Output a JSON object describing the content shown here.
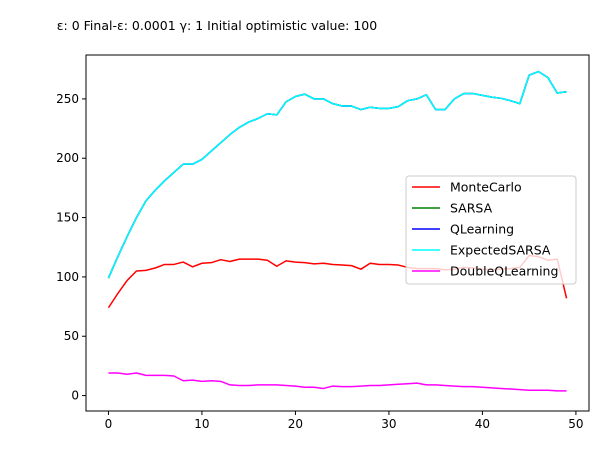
{
  "chart_data": {
    "type": "line",
    "title": "ε: 0    Final-ε: 0.0001    γ: 1    Initial optimistic value: 100",
    "xlabel": "",
    "ylabel": "",
    "xlim": [
      -2.4,
      51.4
    ],
    "ylim": [
      -13,
      287
    ],
    "xticks": [
      0,
      10,
      20,
      30,
      40,
      50
    ],
    "yticks": [
      0,
      50,
      100,
      150,
      200,
      250
    ],
    "grid": false,
    "legend_position": "center-right",
    "x": [
      0,
      1,
      2,
      3,
      4,
      5,
      6,
      7,
      8,
      9,
      10,
      11,
      12,
      13,
      14,
      15,
      16,
      17,
      18,
      19,
      20,
      21,
      22,
      23,
      24,
      25,
      26,
      27,
      28,
      29,
      30,
      31,
      32,
      33,
      34,
      35,
      36,
      37,
      38,
      39,
      40,
      41,
      42,
      43,
      44,
      45,
      46,
      47,
      48,
      49
    ],
    "series": [
      {
        "name": "MonteCarlo",
        "color": "#ff0000",
        "values": [
          74,
          86,
          97,
          105,
          105.5,
          107.5,
          110.5,
          110.5,
          112.5,
          108.5,
          111.5,
          112,
          114.5,
          113,
          115,
          115,
          115,
          114,
          109,
          113.5,
          112.5,
          112,
          111,
          111.5,
          110.5,
          110,
          109.5,
          106.5,
          111.5,
          110.5,
          110.5,
          110,
          108,
          107,
          107,
          107,
          106,
          106.5,
          108,
          107.5,
          106.5,
          106,
          106.5,
          107,
          108,
          118,
          117,
          114,
          115,
          82
        ]
      },
      {
        "name": "SARSA",
        "color": "#008000",
        "values": [
          99,
          117,
          134,
          150,
          164,
          173,
          181,
          188,
          195,
          195,
          199,
          206,
          213,
          220,
          226,
          230.5,
          233.5,
          237.5,
          236.5,
          247.5,
          252,
          254,
          250,
          250,
          246,
          244,
          244,
          241,
          243,
          242,
          242,
          243.5,
          248.5,
          250,
          253.5,
          241,
          241,
          250,
          254.5,
          254.5,
          253,
          251.5,
          250.5,
          248.5,
          246,
          270,
          273,
          268,
          255,
          256
        ]
      },
      {
        "name": "QLearning",
        "color": "#0000ff",
        "values": [
          99,
          117,
          134,
          150,
          164,
          173,
          181,
          188,
          195,
          195,
          199,
          206,
          213,
          220,
          226,
          230.5,
          233.5,
          237.5,
          236.5,
          247.5,
          252,
          254,
          250,
          250,
          246,
          244,
          244,
          241,
          243,
          242,
          242,
          243.5,
          248.5,
          250,
          253.5,
          241,
          241,
          250,
          254.5,
          254.5,
          253,
          251.5,
          250.5,
          248.5,
          246,
          270,
          273,
          268,
          255,
          256
        ]
      },
      {
        "name": "ExpectedSARSA",
        "color": "#00ffff",
        "values": [
          99,
          117,
          134,
          150,
          164,
          173,
          181,
          188,
          195,
          195,
          199,
          206,
          213,
          220,
          226,
          230.5,
          233.5,
          237.5,
          236.5,
          247.5,
          252,
          254,
          250,
          250,
          246,
          244,
          244,
          241,
          243,
          242,
          242,
          243.5,
          248.5,
          250,
          253.5,
          241,
          241,
          250,
          254.5,
          254.5,
          253,
          251.5,
          250.5,
          248.5,
          246,
          270,
          273,
          268,
          255,
          256
        ]
      },
      {
        "name": "DoubleQLearning",
        "color": "#ff00ff",
        "values": [
          19,
          19,
          18,
          19,
          17,
          17,
          17,
          16.5,
          12.5,
          13,
          12,
          12.5,
          12,
          9,
          8.5,
          8.5,
          9,
          9,
          9,
          8.5,
          8,
          7,
          7,
          6,
          8,
          7.5,
          7.5,
          8,
          8.5,
          8.5,
          9,
          9.5,
          10,
          10.5,
          9,
          9,
          8.5,
          8,
          7.5,
          7.5,
          7,
          6.5,
          6,
          5.5,
          5,
          4.5,
          4.5,
          4.5,
          4,
          4
        ]
      }
    ]
  }
}
